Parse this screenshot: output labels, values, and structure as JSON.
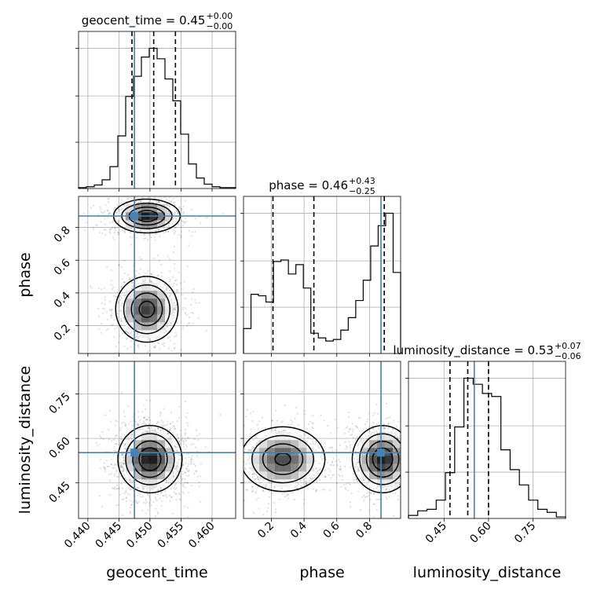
{
  "chart_data": {
    "type": "corner",
    "parameters": [
      "geocent_time",
      "phase",
      "luminosity_distance"
    ],
    "truths": {
      "geocent_time": 0.4475,
      "phase": 0.87,
      "luminosity_distance": 0.552
    },
    "titles": [
      {
        "param": "geocent_time",
        "base": "geocent_time = 0.45",
        "plus": "+0.00",
        "minus": "−0.00"
      },
      {
        "param": "phase",
        "base": "phase = 0.46",
        "plus": "+0.43",
        "minus": "−0.25"
      },
      {
        "param": "luminosity_distance",
        "base": "luminosity_distance = 0.53",
        "plus": "+0.07",
        "minus": "−0.06"
      }
    ],
    "axis_labels": {
      "geocent_time": "geocent_time",
      "phase": "phase",
      "luminosity_distance": "luminosity_distance"
    },
    "ranges": {
      "geocent_time": [
        0.4385,
        0.4638
      ],
      "phase": [
        0.03,
        0.99
      ],
      "luminosity_distance": [
        0.33,
        0.86
      ]
    },
    "ticks": {
      "geocent_time": {
        "values": [
          0.44,
          0.445,
          0.45,
          0.455,
          0.46
        ],
        "labels": [
          "0.440",
          "0.445",
          "0.450",
          "0.455",
          "0.460"
        ]
      },
      "phase": {
        "values": [
          0.2,
          0.4,
          0.6,
          0.8
        ],
        "labels": [
          "0.2",
          "0.4",
          "0.6",
          "0.8"
        ]
      },
      "luminosity_distance": {
        "values": [
          0.45,
          0.6,
          0.75
        ],
        "labels": [
          "0.45",
          "0.60",
          "0.75"
        ]
      }
    },
    "quantiles": {
      "geocent_time": [
        0.4471,
        0.4506,
        0.4541
      ],
      "phase": [
        0.21,
        0.46,
        0.89
      ],
      "luminosity_distance": [
        0.47,
        0.53,
        0.6
      ]
    },
    "histograms": {
      "geocent_time": [
        1,
        2,
        4,
        10,
        25,
        60,
        105,
        128,
        150,
        160,
        148,
        125,
        100,
        62,
        28,
        12,
        5,
        2,
        1,
        1
      ],
      "phase": [
        16,
        38,
        37,
        33,
        59,
        60,
        51,
        57,
        42,
        13,
        10,
        8,
        9,
        15,
        23,
        34,
        47,
        69,
        82,
        90,
        52
      ],
      "luminosity_distance": [
        2,
        5,
        6,
        12,
        30,
        60,
        92,
        88,
        82,
        80,
        45,
        32,
        22,
        12,
        6,
        4,
        1
      ]
    },
    "density_peaks": {
      "phase_vs_geocent_time": [
        {
          "x": 0.4495,
          "y": 0.87,
          "sx": 0.0026,
          "sy": 0.05,
          "w": 1.0
        },
        {
          "x": 0.4495,
          "y": 0.3,
          "sx": 0.0025,
          "sy": 0.1,
          "w": 0.9
        }
      ],
      "luminosity_distance_vs_geocent_time": [
        {
          "x": 0.45,
          "y": 0.53,
          "sx": 0.0025,
          "sy": 0.055,
          "w": 1.0
        }
      ],
      "luminosity_distance_vs_phase": [
        {
          "x": 0.27,
          "y": 0.53,
          "sx": 0.13,
          "sy": 0.055,
          "w": 0.85
        },
        {
          "x": 0.88,
          "y": 0.53,
          "sx": 0.09,
          "sy": 0.055,
          "w": 1.0
        }
      ]
    },
    "colors": {
      "truth": "#4682b4",
      "grid": "#b0b0b0",
      "line": "#000000"
    },
    "grid": true
  }
}
